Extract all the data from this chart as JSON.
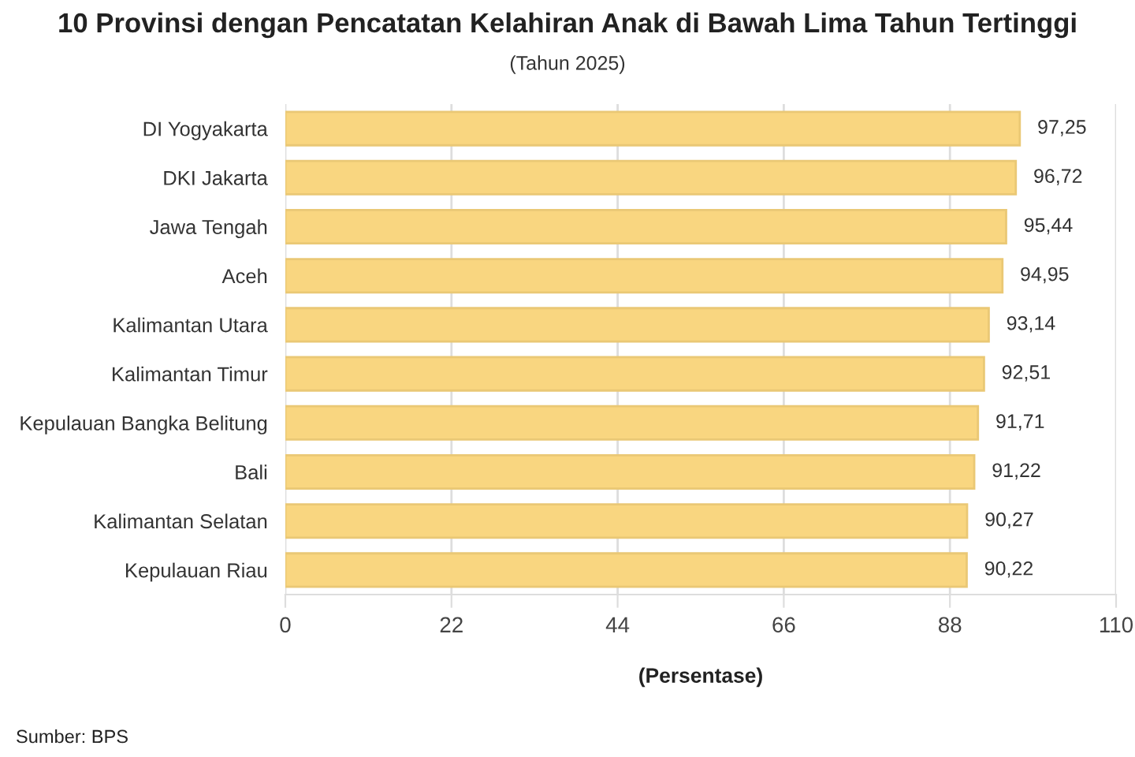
{
  "chart_data": {
    "type": "bar",
    "orientation": "horizontal",
    "title": "10 Provinsi dengan Pencatatan Kelahiran Anak di Bawah Lima Tahun Tertinggi",
    "subtitle": "(Tahun 2025)",
    "xlabel": "(Persentase)",
    "categories": [
      "DI Yogyakarta",
      "DKI Jakarta",
      "Jawa Tengah",
      "Aceh",
      "Kalimantan Utara",
      "Kalimantan Timur",
      "Kepulauan Bangka Belitung",
      "Bali",
      "Kalimantan Selatan",
      "Kepulauan Riau"
    ],
    "values": [
      97.25,
      96.72,
      95.44,
      94.95,
      93.14,
      92.51,
      91.71,
      91.22,
      90.27,
      90.22
    ],
    "value_labels": [
      "97,25",
      "96,72",
      "95,44",
      "94,95",
      "93,14",
      "92,51",
      "91,71",
      "91,22",
      "90,27",
      "90,22"
    ],
    "color": "#f9d680",
    "xlim": [
      0,
      110
    ],
    "xticks": [
      0,
      22,
      44,
      66,
      88,
      110
    ],
    "grid": "x",
    "annotations": [
      "Sumber: BPS"
    ]
  }
}
